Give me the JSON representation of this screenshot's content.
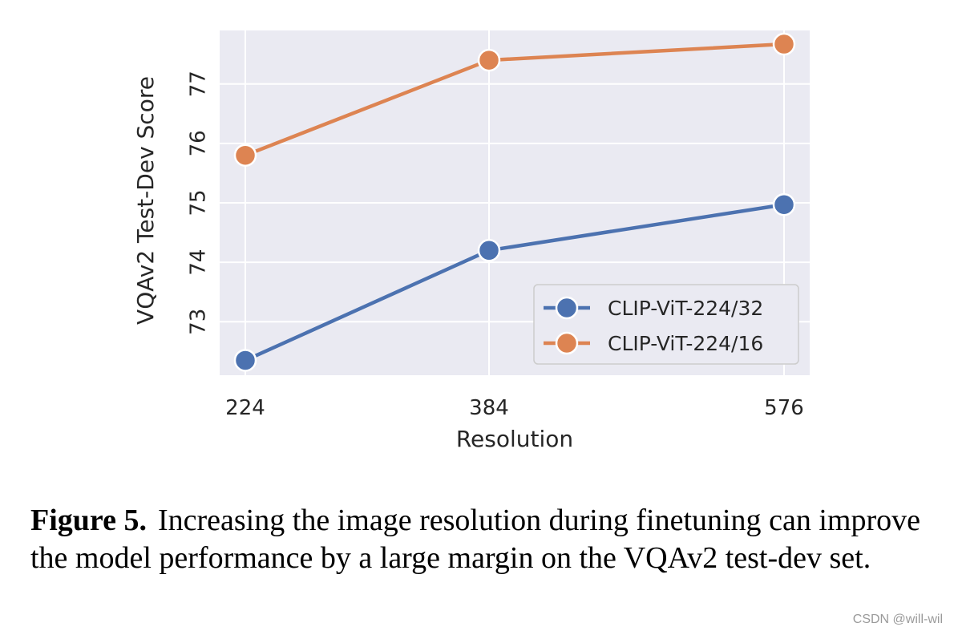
{
  "chart_data": {
    "type": "line",
    "title": "",
    "xlabel": "Resolution",
    "ylabel": "VQAv2 Test-Dev Score",
    "categories": [
      "224",
      "384",
      "576"
    ],
    "xlim": [
      224,
      576
    ],
    "ylim": [
      72.1,
      77.9
    ],
    "yticks": [
      73,
      74,
      75,
      76,
      77
    ],
    "grid": true,
    "legend_position": "lower-right",
    "series": [
      {
        "name": "CLIP-ViT-224/32",
        "color": "#4c72b0",
        "values": [
          72.35,
          74.2,
          74.97
        ]
      },
      {
        "name": "CLIP-ViT-224/16",
        "color": "#dd8452",
        "values": [
          75.8,
          77.4,
          77.67
        ]
      }
    ]
  },
  "caption": {
    "label": "Figure 5.",
    "text": "Increasing the image resolution during finetuning can improve the model performance by a large margin on the VQAv2 test-dev set."
  },
  "watermark": "CSDN @will-wil"
}
